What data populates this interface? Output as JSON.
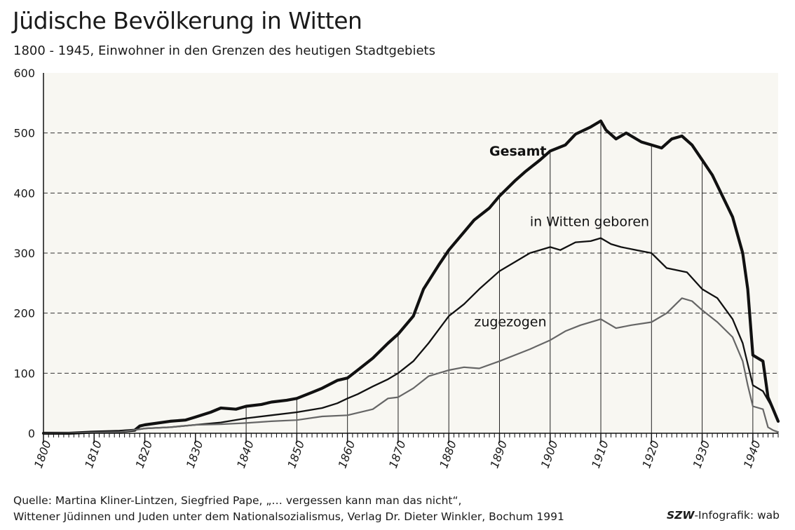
{
  "title": "Jüdische Bevölkerung in Witten",
  "subtitle": "1800 - 1945, Einwohner in den Grenzen des heutigen Stadtgebiets",
  "source_line1": "Quelle:  Martina Kliner-Lintzen, Siegfried Pape,  „… vergessen kann man das nicht“,",
  "source_line2": "Wittener Jüdinnen und Juden unter dem Nationalsozialismus, Verlag Dr. Dieter Winkler, Bochum 1991",
  "credit_brand": "SZW",
  "credit_rest": "-Infografik: wab",
  "chart_data": {
    "type": "line",
    "title": "Jüdische Bevölkerung in Witten",
    "subtitle": "1800 - 1945, Einwohner in den Grenzen des heutigen Stadtgebiets",
    "xlabel": "",
    "ylabel": "",
    "xlim": [
      1800,
      1945
    ],
    "ylim": [
      0,
      600
    ],
    "yticks": [
      0,
      100,
      200,
      300,
      400,
      500,
      600
    ],
    "xticks": [
      1800,
      1810,
      1820,
      1830,
      1840,
      1850,
      1860,
      1870,
      1880,
      1890,
      1900,
      1910,
      1920,
      1930,
      1940
    ],
    "grid": "horizontal dashed, vertical solid at decades",
    "series": [
      {
        "name": "Gesamt",
        "color": "#111111",
        "x": [
          1800,
          1805,
          1810,
          1815,
          1818,
          1819,
          1820,
          1825,
          1828,
          1830,
          1833,
          1835,
          1838,
          1840,
          1843,
          1845,
          1848,
          1850,
          1853,
          1855,
          1858,
          1860,
          1862,
          1865,
          1868,
          1870,
          1873,
          1875,
          1878,
          1880,
          1883,
          1885,
          1888,
          1890,
          1893,
          1895,
          1898,
          1900,
          1903,
          1905,
          1908,
          1910,
          1911,
          1913,
          1915,
          1918,
          1920,
          1922,
          1924,
          1926,
          1928,
          1930,
          1932,
          1934,
          1936,
          1938,
          1939,
          1940,
          1941,
          1942,
          1943,
          1944,
          1945
        ],
        "values": [
          0,
          0,
          2,
          3,
          5,
          12,
          14,
          20,
          22,
          27,
          35,
          42,
          40,
          45,
          48,
          52,
          55,
          58,
          68,
          75,
          88,
          92,
          105,
          125,
          150,
          165,
          195,
          240,
          280,
          305,
          335,
          355,
          375,
          395,
          420,
          435,
          455,
          470,
          480,
          498,
          510,
          520,
          505,
          490,
          500,
          485,
          480,
          475,
          490,
          495,
          480,
          455,
          430,
          395,
          360,
          300,
          240,
          130,
          125,
          120,
          60,
          40,
          20
        ]
      },
      {
        "name": "in Witten geboren",
        "color": "#111111",
        "x": [
          1800,
          1810,
          1815,
          1820,
          1825,
          1830,
          1835,
          1840,
          1845,
          1850,
          1855,
          1858,
          1860,
          1862,
          1865,
          1868,
          1870,
          1873,
          1876,
          1880,
          1883,
          1886,
          1890,
          1893,
          1896,
          1900,
          1902,
          1905,
          1908,
          1910,
          1912,
          1914,
          1917,
          1920,
          1923,
          1927,
          1930,
          1933,
          1936,
          1938,
          1940,
          1942,
          1944,
          1945
        ],
        "values": [
          0,
          1,
          2,
          8,
          10,
          14,
          18,
          25,
          30,
          35,
          42,
          50,
          58,
          65,
          78,
          90,
          100,
          120,
          150,
          195,
          215,
          240,
          270,
          285,
          300,
          310,
          305,
          318,
          320,
          325,
          315,
          310,
          305,
          300,
          275,
          268,
          240,
          225,
          190,
          150,
          80,
          70,
          40,
          20
        ]
      },
      {
        "name": "zugezogen",
        "color": "#666666",
        "x": [
          1800,
          1815,
          1820,
          1825,
          1830,
          1835,
          1840,
          1845,
          1850,
          1855,
          1860,
          1865,
          1868,
          1870,
          1873,
          1876,
          1880,
          1883,
          1886,
          1890,
          1893,
          1896,
          1900,
          1903,
          1906,
          1910,
          1913,
          1916,
          1920,
          1923,
          1926,
          1928,
          1930,
          1933,
          1936,
          1938,
          1939,
          1940,
          1942,
          1943,
          1944,
          1945
        ],
        "values": [
          0,
          2,
          8,
          10,
          14,
          15,
          17,
          20,
          22,
          28,
          30,
          40,
          58,
          60,
          75,
          95,
          105,
          110,
          108,
          120,
          130,
          140,
          155,
          170,
          180,
          190,
          175,
          180,
          185,
          200,
          225,
          220,
          205,
          185,
          160,
          120,
          80,
          45,
          40,
          10,
          5,
          2
        ]
      }
    ],
    "annotations": [
      "Gesamt",
      "in Witten geboren",
      "zugezogen"
    ]
  }
}
